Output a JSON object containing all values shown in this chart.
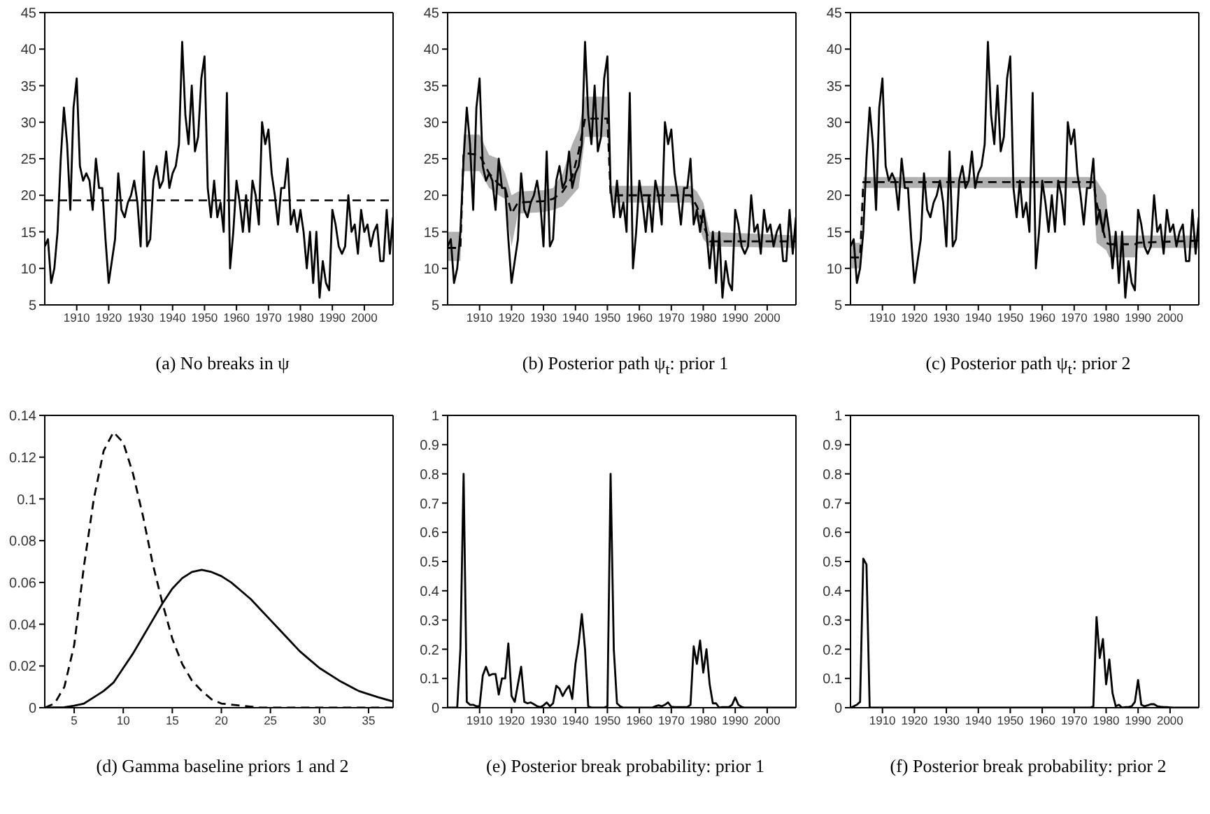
{
  "chart_data": [
    {
      "type": "line",
      "title": "(a) No breaks in ψ",
      "xlim": [
        1900,
        2009
      ],
      "xticks": [
        1910,
        1920,
        1930,
        1940,
        1950,
        1960,
        1970,
        1980,
        1990,
        2000
      ],
      "ylim": [
        5,
        45
      ],
      "yticks": [
        5,
        10,
        15,
        20,
        25,
        30,
        35,
        40,
        45
      ],
      "x": [
        1900,
        1901,
        1902,
        1903,
        1904,
        1905,
        1906,
        1907,
        1908,
        1909,
        1910,
        1911,
        1912,
        1913,
        1914,
        1915,
        1916,
        1917,
        1918,
        1919,
        1920,
        1921,
        1922,
        1923,
        1924,
        1925,
        1926,
        1927,
        1928,
        1929,
        1930,
        1931,
        1932,
        1933,
        1934,
        1935,
        1936,
        1937,
        1938,
        1939,
        1940,
        1941,
        1942,
        1943,
        1944,
        1945,
        1946,
        1947,
        1948,
        1949,
        1950,
        1951,
        1952,
        1953,
        1954,
        1955,
        1956,
        1957,
        1958,
        1959,
        1960,
        1961,
        1962,
        1963,
        1964,
        1965,
        1966,
        1967,
        1968,
        1969,
        1970,
        1971,
        1972,
        1973,
        1974,
        1975,
        1976,
        1977,
        1978,
        1979,
        1980,
        1981,
        1982,
        1983,
        1984,
        1985,
        1986,
        1987,
        1988,
        1989,
        1990,
        1991,
        1992,
        1993,
        1994,
        1995,
        1996,
        1997,
        1998,
        1999,
        2000,
        2001,
        2002,
        2003,
        2004,
        2005,
        2006,
        2007,
        2008,
        2009
      ],
      "series": [
        {
          "color": "#000000",
          "values": [
            13,
            14,
            8,
            10,
            15,
            25,
            32,
            27,
            18,
            32,
            36,
            24,
            22,
            23,
            22,
            18,
            25,
            21,
            21,
            14,
            8,
            11,
            14,
            23,
            18,
            17,
            19,
            20,
            22,
            19,
            13,
            26,
            13,
            14,
            22,
            24,
            21,
            22,
            26,
            21,
            23,
            24,
            27,
            41,
            31,
            27,
            35,
            26,
            28,
            36,
            39,
            21,
            17,
            22,
            17,
            19,
            15,
            34,
            10,
            15,
            22,
            19,
            15,
            20,
            15,
            22,
            20,
            16,
            30,
            27,
            29,
            23,
            20,
            16,
            21,
            21,
            25,
            16,
            18,
            15,
            18,
            15,
            10,
            15,
            8,
            15,
            6,
            11,
            8,
            7,
            18,
            16,
            13,
            12,
            13,
            20,
            15,
            16,
            12,
            18,
            15,
            16,
            13,
            15,
            16,
            11,
            11,
            18,
            12,
            17
          ]
        }
      ],
      "ref_lines": [
        {
          "axis": "y",
          "value": 19.3,
          "color": "#000000",
          "line_style": "dashed"
        }
      ]
    },
    {
      "type": "line",
      "title": "(b) Posterior path ψ$_{t}$: prior 1",
      "xlim": [
        1900,
        2009
      ],
      "xticks": [
        1910,
        1920,
        1930,
        1940,
        1950,
        1960,
        1970,
        1980,
        1990,
        2000
      ],
      "ylim": [
        5,
        45
      ],
      "yticks": [
        5,
        10,
        15,
        20,
        25,
        30,
        35,
        40,
        45
      ],
      "x": [
        1900,
        1901,
        1902,
        1903,
        1904,
        1905,
        1906,
        1907,
        1908,
        1909,
        1910,
        1911,
        1912,
        1913,
        1914,
        1915,
        1916,
        1917,
        1918,
        1919,
        1920,
        1921,
        1922,
        1923,
        1924,
        1925,
        1926,
        1927,
        1928,
        1929,
        1930,
        1931,
        1932,
        1933,
        1934,
        1935,
        1936,
        1937,
        1938,
        1939,
        1940,
        1941,
        1942,
        1943,
        1944,
        1945,
        1946,
        1947,
        1948,
        1949,
        1950,
        1951,
        1952,
        1953,
        1954,
        1955,
        1956,
        1957,
        1958,
        1959,
        1960,
        1961,
        1962,
        1963,
        1964,
        1965,
        1966,
        1967,
        1968,
        1969,
        1970,
        1971,
        1972,
        1973,
        1974,
        1975,
        1976,
        1977,
        1978,
        1979,
        1980,
        1981,
        1982,
        1983,
        1984,
        1985,
        1986,
        1987,
        1988,
        1989,
        1990,
        1991,
        1992,
        1993,
        1994,
        1995,
        1996,
        1997,
        1998,
        1999,
        2000,
        2001,
        2002,
        2003,
        2004,
        2005,
        2006,
        2007,
        2008,
        2009
      ],
      "series": [
        {
          "color": "#000000",
          "values": [
            13,
            14,
            8,
            10,
            15,
            25,
            32,
            27,
            18,
            32,
            36,
            24,
            22,
            23,
            22,
            18,
            25,
            21,
            21,
            14,
            8,
            11,
            14,
            23,
            18,
            17,
            19,
            20,
            22,
            19,
            13,
            26,
            13,
            14,
            22,
            24,
            21,
            22,
            26,
            21,
            23,
            24,
            27,
            41,
            31,
            27,
            35,
            26,
            28,
            36,
            39,
            21,
            17,
            22,
            17,
            19,
            15,
            34,
            10,
            15,
            22,
            19,
            15,
            20,
            15,
            22,
            20,
            16,
            30,
            27,
            29,
            23,
            20,
            16,
            21,
            21,
            25,
            16,
            18,
            15,
            18,
            15,
            10,
            15,
            8,
            15,
            6,
            11,
            8,
            7,
            18,
            16,
            13,
            12,
            13,
            20,
            15,
            16,
            12,
            18,
            15,
            16,
            13,
            15,
            16,
            11,
            11,
            18,
            12,
            17
          ]
        },
        {
          "color": "#000000",
          "line_style": "dashed",
          "x": [
            1900,
            1904,
            1905,
            1910,
            1913,
            1916,
            1918,
            1920,
            1922,
            1930,
            1933,
            1936,
            1939,
            1941,
            1943,
            1950,
            1951,
            1976,
            1978,
            1980,
            1982,
            2009
          ],
          "values": [
            12.8,
            12.8,
            25.8,
            25.5,
            23,
            21.5,
            21,
            17.5,
            19,
            19.2,
            19.5,
            20.5,
            22.5,
            26,
            30.5,
            30.5,
            20,
            20,
            18.5,
            16,
            13.7,
            13.7
          ],
          "lower": [
            11,
            11,
            23.3,
            23.3,
            21,
            20,
            19.5,
            13,
            17.5,
            17.7,
            18,
            18.5,
            20,
            21,
            28,
            28,
            19,
            19,
            16.5,
            14,
            13,
            12.8
          ],
          "upper": [
            15,
            15,
            28.3,
            28.3,
            25.5,
            25,
            23,
            20,
            20.5,
            20.7,
            21,
            23,
            27,
            29,
            33.5,
            33.5,
            21.3,
            21.3,
            20.5,
            19,
            15,
            14.5
          ]
        }
      ]
    },
    {
      "type": "line",
      "title": "(c) Posterior path ψ$_{t}$: prior 2",
      "xlim": [
        1900,
        2009
      ],
      "xticks": [
        1910,
        1920,
        1930,
        1940,
        1950,
        1960,
        1970,
        1980,
        1990,
        2000
      ],
      "ylim": [
        5,
        45
      ],
      "yticks": [
        5,
        10,
        15,
        20,
        25,
        30,
        35,
        40,
        45
      ],
      "x": [
        1900,
        1901,
        1902,
        1903,
        1904,
        1905,
        1906,
        1907,
        1908,
        1909,
        1910,
        1911,
        1912,
        1913,
        1914,
        1915,
        1916,
        1917,
        1918,
        1919,
        1920,
        1921,
        1922,
        1923,
        1924,
        1925,
        1926,
        1927,
        1928,
        1929,
        1930,
        1931,
        1932,
        1933,
        1934,
        1935,
        1936,
        1937,
        1938,
        1939,
        1940,
        1941,
        1942,
        1943,
        1944,
        1945,
        1946,
        1947,
        1948,
        1949,
        1950,
        1951,
        1952,
        1953,
        1954,
        1955,
        1956,
        1957,
        1958,
        1959,
        1960,
        1961,
        1962,
        1963,
        1964,
        1965,
        1966,
        1967,
        1968,
        1969,
        1970,
        1971,
        1972,
        1973,
        1974,
        1975,
        1976,
        1977,
        1978,
        1979,
        1980,
        1981,
        1982,
        1983,
        1984,
        1985,
        1986,
        1987,
        1988,
        1989,
        1990,
        1991,
        1992,
        1993,
        1994,
        1995,
        1996,
        1997,
        1998,
        1999,
        2000,
        2001,
        2002,
        2003,
        2004,
        2005,
        2006,
        2007,
        2008,
        2009
      ],
      "series": [
        {
          "color": "#000000",
          "values": [
            13,
            14,
            8,
            10,
            15,
            25,
            32,
            27,
            18,
            32,
            36,
            24,
            22,
            23,
            22,
            18,
            25,
            21,
            21,
            14,
            8,
            11,
            14,
            23,
            18,
            17,
            19,
            20,
            22,
            19,
            13,
            26,
            13,
            14,
            22,
            24,
            21,
            22,
            26,
            21,
            23,
            24,
            27,
            41,
            31,
            27,
            35,
            26,
            28,
            36,
            39,
            21,
            17,
            22,
            17,
            19,
            15,
            34,
            10,
            15,
            22,
            19,
            15,
            20,
            15,
            22,
            20,
            16,
            30,
            27,
            29,
            23,
            20,
            16,
            21,
            21,
            25,
            16,
            18,
            15,
            18,
            15,
            10,
            15,
            8,
            15,
            6,
            11,
            8,
            7,
            18,
            16,
            13,
            12,
            13,
            20,
            15,
            16,
            12,
            18,
            15,
            16,
            13,
            15,
            16,
            11,
            11,
            18,
            12,
            17
          ]
        },
        {
          "color": "#000000",
          "line_style": "dashed",
          "x": [
            1900,
            1903,
            1904,
            1976,
            1977,
            1980,
            1981,
            1989,
            1990,
            2009
          ],
          "values": [
            11.5,
            11.5,
            21.8,
            21.8,
            19,
            13.5,
            13.3,
            13.3,
            13.5,
            13.8
          ],
          "lower": [
            10,
            10,
            21,
            21,
            13.5,
            12.5,
            11.5,
            11.5,
            12.8,
            12.8
          ],
          "upper": [
            13.5,
            13.5,
            22.5,
            22.5,
            22,
            20,
            14.5,
            14.5,
            14.5,
            14.5
          ]
        }
      ]
    },
    {
      "type": "line",
      "title": "(d) Gamma baseline priors 1 and 2",
      "xlim": [
        2,
        37.5
      ],
      "xticks": [
        5,
        10,
        15,
        20,
        25,
        30,
        35
      ],
      "ylim": [
        0,
        0.14
      ],
      "yticks": [
        0,
        0.02,
        0.04,
        0.06,
        0.08,
        0.1,
        0.12,
        0.14
      ],
      "series": [
        {
          "color": "#000000",
          "line_style": "dashed",
          "x": [
            2,
            3,
            4,
            5,
            6,
            7,
            8,
            9,
            10,
            11,
            12,
            13,
            14,
            15,
            16,
            17,
            18,
            19,
            20,
            22,
            24,
            26,
            30,
            37.5
          ],
          "values": [
            0,
            0.002,
            0.01,
            0.03,
            0.068,
            0.1,
            0.123,
            0.132,
            0.127,
            0.112,
            0.092,
            0.069,
            0.05,
            0.033,
            0.021,
            0.013,
            0.008,
            0.004,
            0.002,
            0.001,
            0,
            0,
            0,
            0
          ]
        },
        {
          "color": "#000000",
          "x": [
            2,
            4,
            5,
            6,
            7,
            8,
            9,
            10,
            11,
            12,
            13,
            14,
            15,
            16,
            17,
            18,
            19,
            20,
            21,
            22,
            23,
            24,
            25,
            26,
            27,
            28,
            29,
            30,
            32,
            34,
            36,
            37.5
          ],
          "values": [
            0,
            0.0002,
            0.001,
            0.002,
            0.005,
            0.008,
            0.012,
            0.019,
            0.026,
            0.034,
            0.042,
            0.05,
            0.057,
            0.062,
            0.065,
            0.066,
            0.065,
            0.063,
            0.06,
            0.056,
            0.052,
            0.047,
            0.042,
            0.037,
            0.032,
            0.027,
            0.023,
            0.019,
            0.013,
            0.008,
            0.005,
            0.003
          ]
        }
      ]
    },
    {
      "type": "line",
      "title": "(e) Posterior break probability: prior 1",
      "xlim": [
        1900,
        2009
      ],
      "xticks": [
        1910,
        1920,
        1930,
        1940,
        1950,
        1960,
        1970,
        1980,
        1990,
        2000
      ],
      "ylim": [
        0,
        1
      ],
      "yticks": [
        0,
        0.1,
        0.2,
        0.3,
        0.4,
        0.5,
        0.6,
        0.7,
        0.8,
        0.9,
        1
      ],
      "x": [
        1900,
        1901,
        1902,
        1903,
        1904,
        1905,
        1906,
        1907,
        1908,
        1909,
        1910,
        1911,
        1912,
        1913,
        1914,
        1915,
        1916,
        1917,
        1918,
        1919,
        1920,
        1921,
        1922,
        1923,
        1924,
        1925,
        1926,
        1927,
        1928,
        1929,
        1930,
        1931,
        1932,
        1933,
        1934,
        1935,
        1936,
        1937,
        1938,
        1939,
        1940,
        1941,
        1942,
        1943,
        1944,
        1945,
        1946,
        1947,
        1948,
        1949,
        1950,
        1951,
        1952,
        1953,
        1954,
        1955,
        1956,
        1957,
        1958,
        1959,
        1960,
        1961,
        1962,
        1963,
        1964,
        1965,
        1966,
        1967,
        1968,
        1969,
        1970,
        1971,
        1972,
        1973,
        1974,
        1975,
        1976,
        1977,
        1978,
        1979,
        1980,
        1981,
        1982,
        1983,
        1984,
        1985,
        1986,
        1987,
        1988,
        1989,
        1990,
        1991,
        1992,
        1993,
        1994,
        1995,
        1996,
        1997,
        1998,
        1999,
        2000,
        2001,
        2002,
        2003,
        2004,
        2005,
        2006,
        2007,
        2008,
        2009
      ],
      "series": [
        {
          "color": "#000000",
          "values": [
            0,
            0,
            0,
            0,
            0.2,
            0.8,
            0.02,
            0.01,
            0.01,
            0.005,
            0.005,
            0.11,
            0.14,
            0.11,
            0.115,
            0.115,
            0.045,
            0.1,
            0.1,
            0.22,
            0.04,
            0.02,
            0.08,
            0.14,
            0.02,
            0.015,
            0.018,
            0.012,
            0.005,
            0.002,
            0.008,
            0.018,
            0.005,
            0.015,
            0.075,
            0.065,
            0.04,
            0.06,
            0.075,
            0.03,
            0.15,
            0.22,
            0.32,
            0.2,
            0.005,
            0,
            0,
            0,
            0,
            0,
            0.005,
            0.8,
            0.2,
            0.015,
            0.005,
            0,
            0,
            0,
            0,
            0,
            0,
            0,
            0,
            0,
            0,
            0.005,
            0.008,
            0.005,
            0.01,
            0.018,
            0.003,
            0.002,
            0.002,
            0.002,
            0.002,
            0.002,
            0.01,
            0.21,
            0.15,
            0.23,
            0.12,
            0.2,
            0.08,
            0.015,
            0.015,
            0,
            0.002,
            0.002,
            0.002,
            0.01,
            0.035,
            0.01,
            0.003,
            0,
            0,
            0,
            0,
            0,
            0,
            0,
            0,
            0,
            0,
            0,
            0,
            0,
            0,
            0,
            0,
            0
          ]
        }
      ]
    },
    {
      "type": "line",
      "title": "(f) Posterior break probability: prior 2",
      "xlim": [
        1900,
        2009
      ],
      "xticks": [
        1910,
        1920,
        1930,
        1940,
        1950,
        1960,
        1970,
        1980,
        1990,
        2000
      ],
      "ylim": [
        0,
        1
      ],
      "yticks": [
        0,
        0.1,
        0.2,
        0.3,
        0.4,
        0.5,
        0.6,
        0.7,
        0.8,
        0.9,
        1
      ],
      "x": [
        1900,
        1901,
        1902,
        1903,
        1904,
        1905,
        1906,
        1907,
        1908,
        1909,
        1910,
        1911,
        1912,
        1913,
        1914,
        1915,
        1916,
        1917,
        1918,
        1919,
        1920,
        1921,
        1922,
        1923,
        1924,
        1925,
        1926,
        1927,
        1928,
        1929,
        1930,
        1931,
        1932,
        1933,
        1934,
        1935,
        1936,
        1937,
        1938,
        1939,
        1940,
        1941,
        1942,
        1943,
        1944,
        1945,
        1946,
        1947,
        1948,
        1949,
        1950,
        1951,
        1952,
        1953,
        1954,
        1955,
        1956,
        1957,
        1958,
        1959,
        1960,
        1961,
        1962,
        1963,
        1964,
        1965,
        1966,
        1967,
        1968,
        1969,
        1970,
        1971,
        1972,
        1973,
        1974,
        1975,
        1976,
        1977,
        1978,
        1979,
        1980,
        1981,
        1982,
        1983,
        1984,
        1985,
        1986,
        1987,
        1988,
        1989,
        1990,
        1991,
        1992,
        1993,
        1994,
        1995,
        1996,
        1997,
        1998,
        1999,
        2000,
        2001,
        2002,
        2003,
        2004,
        2005,
        2006,
        2007,
        2008,
        2009
      ],
      "series": [
        {
          "color": "#000000",
          "values": [
            0,
            0.005,
            0.01,
            0.02,
            0.51,
            0.49,
            0,
            0,
            0,
            0,
            0,
            0,
            0,
            0,
            0,
            0,
            0,
            0,
            0,
            0,
            0,
            0,
            0,
            0,
            0,
            0,
            0,
            0,
            0,
            0,
            0,
            0,
            0,
            0,
            0,
            0,
            0,
            0,
            0,
            0,
            0,
            0,
            0,
            0,
            0,
            0,
            0,
            0,
            0,
            0,
            0,
            0,
            0,
            0,
            0,
            0,
            0,
            0,
            0,
            0,
            0,
            0,
            0,
            0,
            0,
            0,
            0,
            0,
            0,
            0,
            0,
            0,
            0,
            0,
            0,
            0,
            0.005,
            0.31,
            0.17,
            0.235,
            0.08,
            0.165,
            0.05,
            0.005,
            0.01,
            0,
            0.002,
            0.002,
            0.005,
            0.02,
            0.095,
            0.01,
            0.005,
            0.008,
            0.012,
            0.012,
            0.005,
            0.003,
            0.002,
            0.002,
            0.001,
            0,
            0,
            0,
            0,
            0,
            0,
            0,
            0,
            0
          ]
        }
      ]
    }
  ]
}
